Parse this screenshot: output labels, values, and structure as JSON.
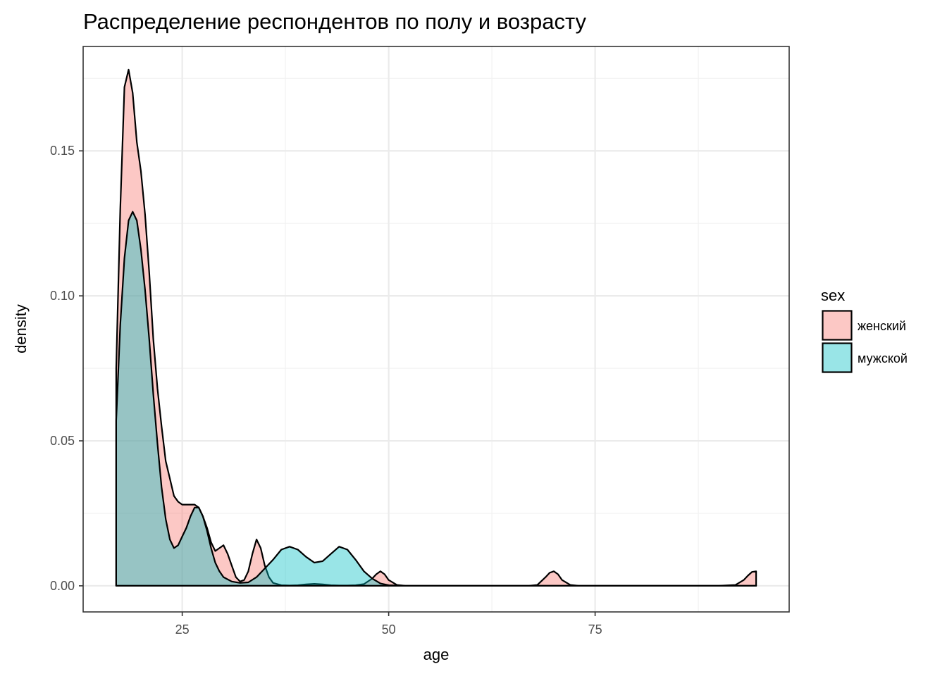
{
  "chart_data": {
    "type": "area",
    "subtype": "density",
    "title": "Распределение респондентов по полу и возрасту",
    "xlabel": "age",
    "ylabel": "density",
    "xlim": [
      13,
      98.5
    ],
    "ylim": [
      -0.009,
      0.186
    ],
    "x_ticks": [
      25,
      50,
      75
    ],
    "x_tick_labels": [
      "25",
      "50",
      "75"
    ],
    "y_ticks": [
      0.0,
      0.05,
      0.1,
      0.15
    ],
    "y_tick_labels": [
      "0.00",
      "0.05",
      "0.10",
      "0.15"
    ],
    "grid": true,
    "legend": {
      "title": "sex",
      "position": "right"
    },
    "series": [
      {
        "name": "женский",
        "fill": "#F8766D",
        "x": [
          17,
          17.5,
          18,
          18.5,
          19,
          19.5,
          20,
          20.5,
          21,
          21.5,
          22,
          22.5,
          23,
          23.5,
          24,
          24.5,
          25,
          25.5,
          26,
          26.5,
          27,
          27.5,
          28,
          28.5,
          29,
          29.5,
          30,
          30.5,
          31,
          31.5,
          32,
          32.5,
          33,
          33.5,
          34,
          34.5,
          35,
          35.5,
          36,
          37,
          38,
          39,
          40,
          41,
          42,
          43,
          44,
          45,
          46,
          47,
          48,
          48.5,
          49,
          49.5,
          50,
          51,
          52,
          60,
          67,
          68,
          69,
          69.5,
          70,
          70.5,
          71,
          72,
          73,
          80,
          90,
          92,
          93,
          93.5,
          94,
          94.5
        ],
        "values": [
          0.075,
          0.13,
          0.172,
          0.178,
          0.17,
          0.153,
          0.143,
          0.128,
          0.108,
          0.085,
          0.068,
          0.055,
          0.043,
          0.037,
          0.031,
          0.029,
          0.028,
          0.028,
          0.028,
          0.028,
          0.027,
          0.024,
          0.02,
          0.015,
          0.012,
          0.013,
          0.014,
          0.011,
          0.007,
          0.003,
          0.0015,
          0.002,
          0.005,
          0.011,
          0.016,
          0.013,
          0.007,
          0.003,
          0.001,
          0.0002,
          0.0001,
          0.0002,
          0.0005,
          0.0007,
          0.0005,
          0.0002,
          0.0001,
          0.0001,
          0.0002,
          0.0006,
          0.0025,
          0.004,
          0.005,
          0.004,
          0.002,
          0.0003,
          0.0,
          0.0,
          0.0,
          0.0003,
          0.003,
          0.0045,
          0.005,
          0.004,
          0.002,
          0.0003,
          0.0,
          0.0,
          0.0,
          0.0003,
          0.002,
          0.0035,
          0.0048,
          0.005
        ]
      },
      {
        "name": "мужской",
        "fill": "#00BFC4",
        "x": [
          17,
          17.5,
          18,
          18.5,
          19,
          19.5,
          20,
          20.5,
          21,
          21.5,
          22,
          22.5,
          23,
          23.5,
          24,
          24.5,
          25,
          25.5,
          26,
          26.5,
          27,
          27.5,
          28,
          28.5,
          29,
          29.5,
          30,
          31,
          32,
          33,
          34,
          35,
          36,
          37,
          38,
          39,
          40,
          41,
          42,
          43,
          44,
          45,
          46,
          47,
          48,
          49,
          50,
          52,
          60,
          70,
          94.5
        ],
        "values": [
          0.057,
          0.09,
          0.113,
          0.126,
          0.129,
          0.126,
          0.116,
          0.102,
          0.085,
          0.066,
          0.049,
          0.034,
          0.023,
          0.016,
          0.013,
          0.014,
          0.017,
          0.02,
          0.024,
          0.027,
          0.027,
          0.024,
          0.019,
          0.013,
          0.008,
          0.005,
          0.003,
          0.0015,
          0.001,
          0.0012,
          0.003,
          0.006,
          0.009,
          0.0125,
          0.0135,
          0.0125,
          0.01,
          0.008,
          0.0085,
          0.011,
          0.0135,
          0.0125,
          0.009,
          0.005,
          0.0025,
          0.0008,
          0.0002,
          0.0,
          0.0,
          0.0,
          0.0
        ]
      },
      {
        "name": "женский",
        "comment_free": true,
        "x": [],
        "values": []
      }
    ]
  }
}
